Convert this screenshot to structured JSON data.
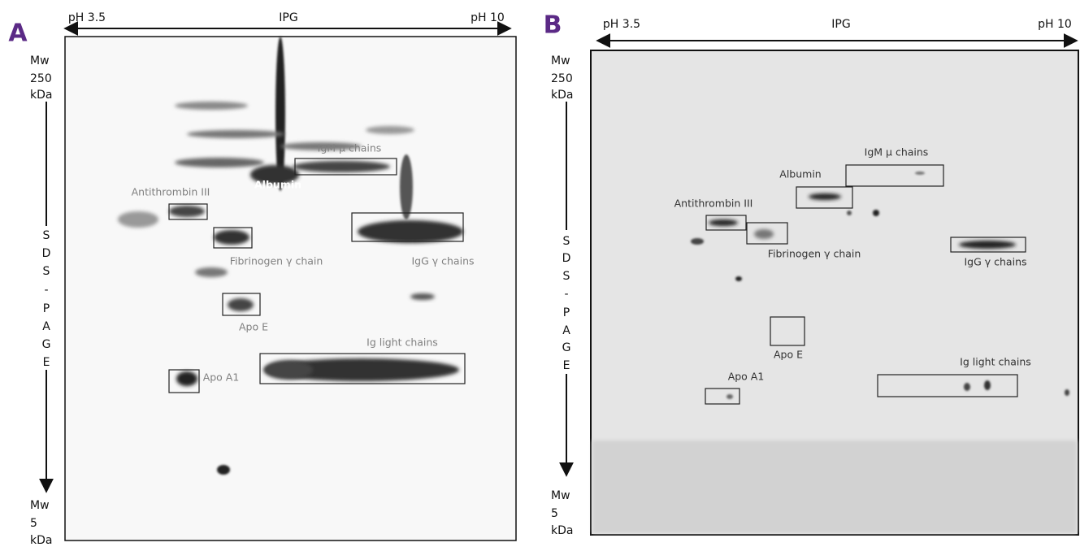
{
  "panels": [
    {
      "letter": "A",
      "ph_left": "pH 3.5",
      "axis_label": "IPG",
      "ph_right": "pH 10",
      "mw_top": [
        "Mw",
        "250",
        "kDa"
      ],
      "sds": [
        "S",
        "D",
        "S",
        "-",
        "P",
        "A",
        "G",
        "E"
      ],
      "mw_bottom": [
        "Mw",
        "5",
        "kDa"
      ],
      "spots": [
        {
          "label": "IgM μ chains"
        },
        {
          "label": "Albumin"
        },
        {
          "label": "Antithrombin III"
        },
        {
          "label": "Fibrinogen γ chain"
        },
        {
          "label": "IgG γ chains"
        },
        {
          "label": "Apo E"
        },
        {
          "label": "Ig light chains"
        },
        {
          "label": "Apo A1"
        }
      ]
    },
    {
      "letter": "B",
      "ph_left": "pH 3.5",
      "axis_label": "IPG",
      "ph_right": "pH 10",
      "mw_top": [
        "Mw",
        "250",
        "kDa"
      ],
      "sds": [
        "S",
        "D",
        "S",
        "-",
        "P",
        "A",
        "G",
        "E"
      ],
      "mw_bottom": [
        "Mw",
        "5",
        "kDa"
      ],
      "spots": [
        {
          "label": "IgM μ chains"
        },
        {
          "label": "Albumin"
        },
        {
          "label": "Antithrombin III"
        },
        {
          "label": "Fibrinogen γ chain"
        },
        {
          "label": "IgG γ chains"
        },
        {
          "label": "Apo E"
        },
        {
          "label": "Ig light chains"
        },
        {
          "label": "Apo A1"
        }
      ]
    }
  ]
}
